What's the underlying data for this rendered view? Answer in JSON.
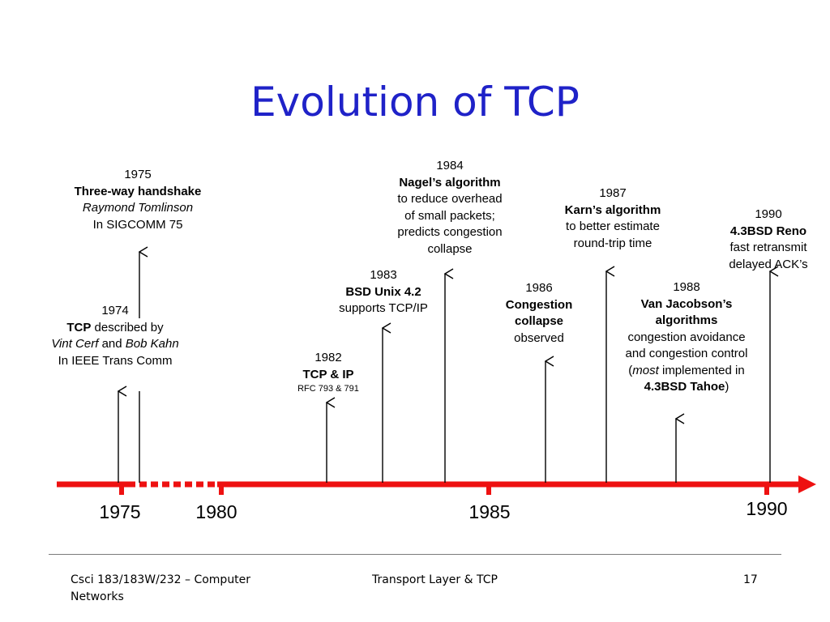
{
  "title": "Evolution of TCP",
  "colors": {
    "title": "#1f22c8",
    "timeline": "#ee1111",
    "arrows": "#000000"
  },
  "events": [
    {
      "id": "1975",
      "lines": [
        [
          {
            "t": "1975"
          }
        ],
        [
          {
            "t": "Three-way handshake",
            "b": true
          }
        ],
        [
          {
            "t": "Raymond Tomlinson",
            "i": true
          }
        ],
        [
          {
            "t": "In SIGCOMM 75"
          }
        ]
      ]
    },
    {
      "id": "1974",
      "lines": [
        [
          {
            "t": "1974"
          }
        ],
        [
          {
            "t": "TCP",
            "b": true
          },
          {
            "t": " described by"
          }
        ],
        [
          {
            "t": "Vint Cerf",
            "i": true
          },
          {
            "t": " and "
          },
          {
            "t": "Bob Kahn",
            "i": true
          }
        ],
        [
          {
            "t": "In IEEE Trans Comm"
          }
        ]
      ]
    },
    {
      "id": "1982",
      "lines": [
        [
          {
            "t": "1982"
          }
        ],
        [
          {
            "t": "TCP & IP",
            "b": true
          }
        ],
        [
          {
            "t": "RFC 793 & 791",
            "s": true
          }
        ]
      ]
    },
    {
      "id": "1983",
      "lines": [
        [
          {
            "t": "1983"
          }
        ],
        [
          {
            "t": "BSD Unix 4.2",
            "b": true
          }
        ],
        [
          {
            "t": "supports TCP/IP"
          }
        ]
      ]
    },
    {
      "id": "1984",
      "lines": [
        [
          {
            "t": "1984"
          }
        ],
        [
          {
            "t": "Nagel’s algorithm",
            "b": true
          }
        ],
        [
          {
            "t": "to reduce overhead"
          }
        ],
        [
          {
            "t": "of small packets;"
          }
        ],
        [
          {
            "t": "predicts congestion"
          }
        ],
        [
          {
            "t": "collapse"
          }
        ]
      ]
    },
    {
      "id": "1986",
      "lines": [
        [
          {
            "t": "1986"
          }
        ],
        [
          {
            "t": "Congestion",
            "b": true
          }
        ],
        [
          {
            "t": "collapse",
            "b": true
          }
        ],
        [
          {
            "t": "observed"
          }
        ]
      ]
    },
    {
      "id": "1987",
      "lines": [
        [
          {
            "t": "1987"
          }
        ],
        [
          {
            "t": "Karn’s algorithm",
            "b": true
          }
        ],
        [
          {
            "t": "to better estimate"
          }
        ],
        [
          {
            "t": "round-trip time"
          }
        ]
      ]
    },
    {
      "id": "1988",
      "lines": [
        [
          {
            "t": "1988"
          }
        ],
        [
          {
            "t": "Van Jacobson’s",
            "b": true
          }
        ],
        [
          {
            "t": "algorithms",
            "b": true
          }
        ],
        [
          {
            "t": "congestion avoidance"
          }
        ],
        [
          {
            "t": "and congestion control"
          }
        ],
        [
          {
            "t": "("
          },
          {
            "t": "most",
            "i": true
          },
          {
            "t": " implemented in"
          }
        ],
        [
          {
            "t": "4.3BSD Tahoe",
            "b": true
          },
          {
            "t": ")"
          }
        ]
      ]
    },
    {
      "id": "1990",
      "lines": [
        [
          {
            "t": "1990"
          }
        ],
        [
          {
            "t": "4.3BSD Reno",
            "b": true
          }
        ],
        [
          {
            "t": "fast retransmit"
          }
        ],
        [
          {
            "t": "delayed ACK’s"
          }
        ]
      ]
    }
  ],
  "axis_years": [
    "1975",
    "1980",
    "1985",
    "1990"
  ],
  "footer": {
    "course": "Csci 183/183W/232 – Computer",
    "course_line2": "Networks",
    "topic": "Transport Layer &  TCP",
    "page": "17"
  }
}
